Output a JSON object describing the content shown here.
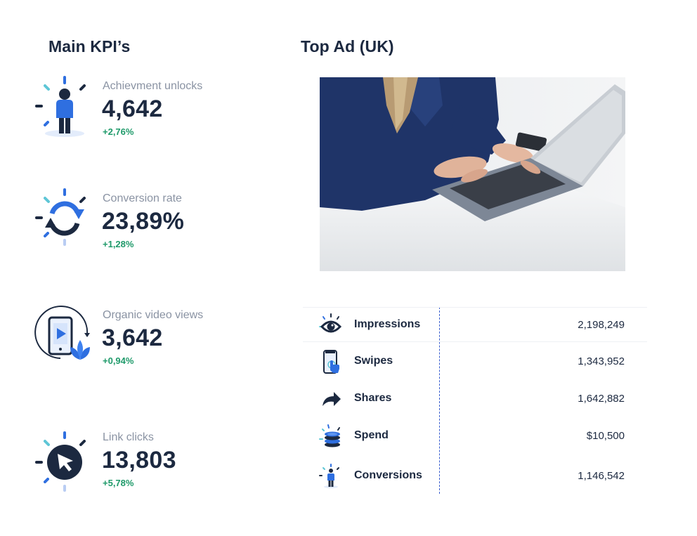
{
  "main_kpis": {
    "title": "Main KPI’s",
    "items": [
      {
        "label": "Achievment unlocks",
        "value": "4,642",
        "change": "+2,76%",
        "icon": "person-icon"
      },
      {
        "label": "Conversion rate",
        "value": "23,89%",
        "change": "+1,28%",
        "icon": "refresh-cycle-icon"
      },
      {
        "label": "Organic video views",
        "value": "3,642",
        "change": "+0,94%",
        "icon": "phone-video-growth-icon"
      },
      {
        "label": "Link clicks",
        "value": "13,803",
        "change": "+5,78%",
        "icon": "cursor-click-icon"
      }
    ]
  },
  "top_ad": {
    "title": "Top Ad (UK)",
    "image": "woman-typing-on-laptop-photo",
    "metrics": [
      {
        "label": "Impressions",
        "value": "2,198,249",
        "icon": "eye-icon"
      },
      {
        "label": "Swipes",
        "value": "1,343,952",
        "icon": "phone-swipe-icon"
      },
      {
        "label": "Shares",
        "value": "1,642,882",
        "icon": "share-arrow-icon"
      },
      {
        "label": "Spend",
        "value": "$10,500",
        "icon": "coins-stack-icon"
      },
      {
        "label": "Conversions",
        "value": "1,146,542",
        "icon": "person-icon"
      }
    ]
  },
  "colors": {
    "navy": "#1c2940",
    "blue": "#2f6fe0",
    "teal": "#5ec6d6",
    "green": "#1f9a6a",
    "muted": "#8a93a3"
  }
}
